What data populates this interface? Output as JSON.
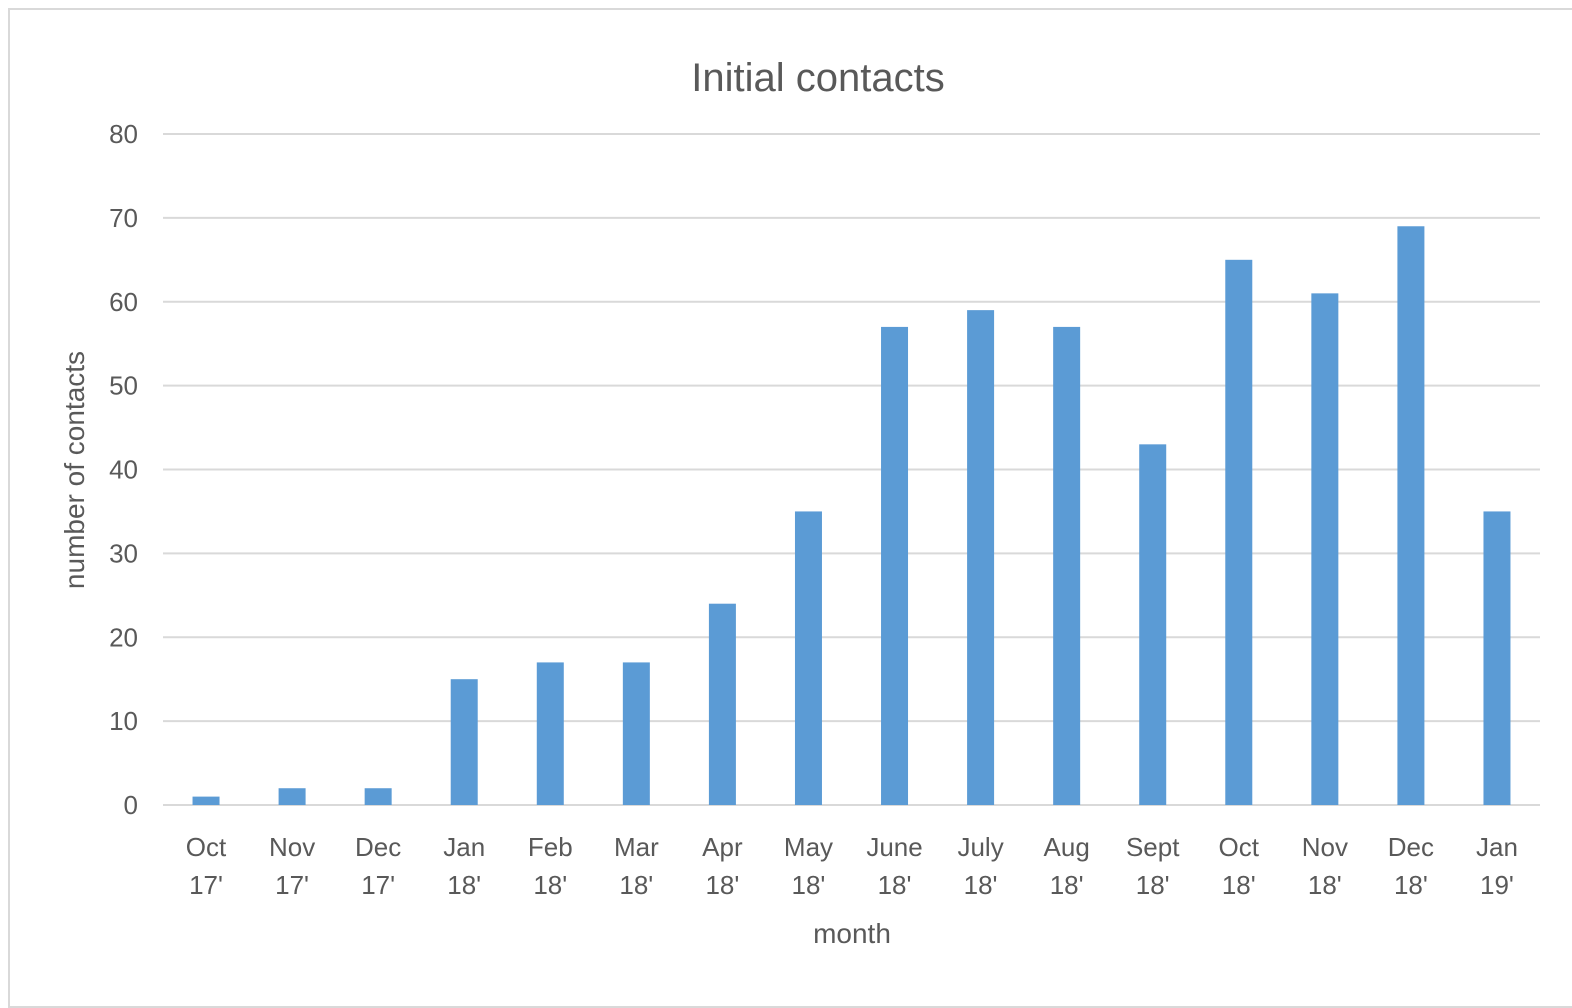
{
  "chart_data": {
    "type": "bar",
    "title": "Initial contacts",
    "xlabel": "month",
    "ylabel": "number of contacts",
    "ylim": [
      0,
      80
    ],
    "yticks": [
      0,
      10,
      20,
      30,
      40,
      50,
      60,
      70,
      80
    ],
    "grid": true,
    "legend": "none",
    "bar_color": "#5b9bd5",
    "categories": [
      [
        "Oct",
        "17'"
      ],
      [
        "Nov",
        "17'"
      ],
      [
        "Dec",
        "17'"
      ],
      [
        "Jan",
        "18'"
      ],
      [
        "Feb",
        "18'"
      ],
      [
        "Mar",
        "18'"
      ],
      [
        "Apr",
        "18'"
      ],
      [
        "May",
        "18'"
      ],
      [
        "June",
        "18'"
      ],
      [
        "July",
        "18'"
      ],
      [
        "Aug",
        "18'"
      ],
      [
        "Sept",
        "18'"
      ],
      [
        "Oct",
        "18'"
      ],
      [
        "Nov",
        "18'"
      ],
      [
        "Dec",
        "18'"
      ],
      [
        "Jan",
        "19'"
      ]
    ],
    "values": [
      1,
      2,
      2,
      15,
      17,
      17,
      24,
      35,
      57,
      59,
      57,
      43,
      65,
      61,
      69,
      35
    ]
  }
}
